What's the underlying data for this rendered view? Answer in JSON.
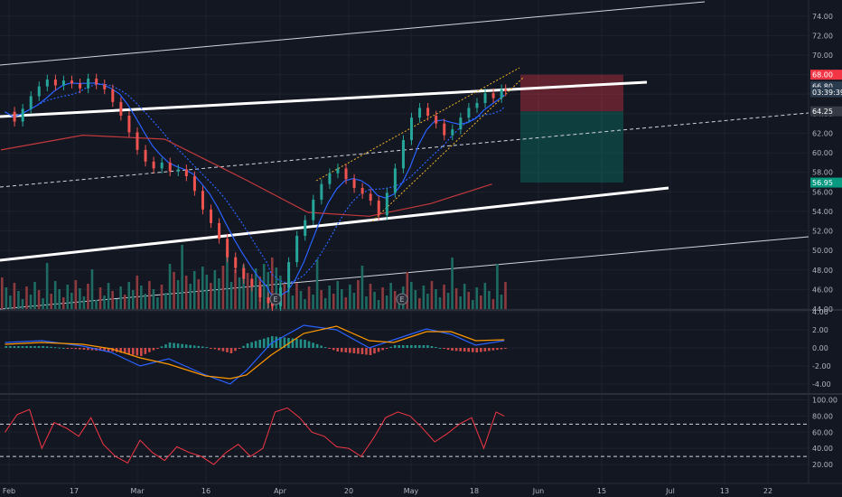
{
  "chart_data": [
    {
      "panel": "price",
      "type": "candlestick",
      "title": "",
      "y_axis": {
        "side": "right",
        "ticks": [
          "74.00",
          "72.00",
          "70.00",
          "68.00",
          "66.00",
          "64.00",
          "62.00",
          "60.00",
          "58.00",
          "56.00",
          "54.00",
          "52.00",
          "50.00",
          "48.00",
          "46.00",
          "44.00"
        ],
        "range": [
          44,
          75
        ]
      },
      "x_axis": {
        "ticks": [
          "Feb",
          "17",
          "Mar",
          "16",
          "Apr",
          "20",
          "May",
          "18",
          "Jun",
          "15",
          "Jul",
          "13",
          "22"
        ]
      },
      "price_tags": [
        {
          "label": "68.00",
          "value": 68.0,
          "color": "#f23645"
        },
        {
          "label": "66.80",
          "value": 66.8,
          "color": "#2a3b4d"
        },
        {
          "label": "03:39:39",
          "value": 66.2,
          "color": "#2a3b4d"
        },
        {
          "label": "64.25",
          "value": 64.25,
          "color": "#363a45"
        },
        {
          "label": "56.95",
          "value": 56.95,
          "color": "#089981"
        }
      ],
      "close_path": [
        [
          1,
          64.2
        ],
        [
          3,
          63.2
        ],
        [
          5,
          64.5
        ],
        [
          7,
          65.8
        ],
        [
          9,
          66.8
        ],
        [
          11,
          67.5
        ],
        [
          13,
          66.9
        ],
        [
          15,
          67.4
        ],
        [
          17,
          67.1
        ],
        [
          19,
          66.6
        ],
        [
          21,
          67.6
        ],
        [
          23,
          67.0
        ],
        [
          25,
          66.5
        ],
        [
          27,
          65.2
        ],
        [
          29,
          63.8
        ],
        [
          31,
          62.1
        ],
        [
          33,
          60.3
        ],
        [
          35,
          59.1
        ],
        [
          37,
          58.4
        ],
        [
          39,
          59.0
        ],
        [
          41,
          58.1
        ],
        [
          43,
          58.3
        ],
        [
          45,
          57.6
        ],
        [
          47,
          56.1
        ],
        [
          49,
          54.2
        ],
        [
          51,
          52.8
        ],
        [
          53,
          51.2
        ],
        [
          55,
          49.3
        ],
        [
          57,
          48.2
        ],
        [
          59,
          47.1
        ],
        [
          61,
          46.3
        ],
        [
          63,
          45.2
        ],
        [
          65,
          44.6
        ],
        [
          66,
          44.3
        ],
        [
          68,
          46.2
        ],
        [
          70,
          48.8
        ],
        [
          72,
          51.5
        ],
        [
          74,
          53.1
        ],
        [
          76,
          55.2
        ],
        [
          78,
          56.8
        ],
        [
          80,
          57.9
        ],
        [
          82,
          58.4
        ],
        [
          84,
          57.3
        ],
        [
          86,
          56.4
        ],
        [
          88,
          55.8
        ],
        [
          90,
          55.1
        ],
        [
          92,
          53.6
        ],
        [
          94,
          55.9
        ],
        [
          96,
          58.4
        ],
        [
          98,
          61.3
        ],
        [
          100,
          63.6
        ],
        [
          102,
          64.6
        ],
        [
          104,
          63.8
        ],
        [
          106,
          63.0
        ],
        [
          108,
          61.8
        ],
        [
          110,
          62.4
        ],
        [
          112,
          63.6
        ],
        [
          114,
          64.6
        ],
        [
          116,
          65.1
        ],
        [
          118,
          66.1
        ],
        [
          120,
          65.6
        ],
        [
          122,
          66.5
        ],
        [
          123,
          66.3
        ]
      ],
      "volume_hint": "histogram along the bottom of the price pane",
      "earnings_markers": [
        {
          "label": "E",
          "x_index": 64
        },
        {
          "label": "E",
          "x_index": 99
        }
      ],
      "trade_zones": [
        {
          "name": "stop",
          "top": 68.0,
          "bottom": 64.25,
          "color": "#f23645"
        },
        {
          "name": "target",
          "top": 64.25,
          "bottom": 56.95,
          "color": "#089981"
        }
      ]
    },
    {
      "panel": "macd",
      "type": "histogram+line",
      "title": "",
      "y_axis": {
        "ticks": [
          "4.00",
          "2.00",
          "0.00",
          "-2.00",
          "-4.00"
        ],
        "range": [
          -5,
          4
        ]
      },
      "series": [
        {
          "role": "macd",
          "color": "#2962ff",
          "points": [
            [
              1,
              0.6
            ],
            [
              10,
              0.8
            ],
            [
              20,
              0.2
            ],
            [
              27,
              -0.5
            ],
            [
              34,
              -2.0
            ],
            [
              41,
              -1.2
            ],
            [
              50,
              -3.0
            ],
            [
              56,
              -4.0
            ],
            [
              60,
              -2.5
            ],
            [
              66,
              0.5
            ],
            [
              74,
              2.5
            ],
            [
              82,
              2.0
            ],
            [
              90,
              0.0
            ],
            [
              96,
              0.9
            ],
            [
              104,
              2.1
            ],
            [
              110,
              1.5
            ],
            [
              116,
              0.3
            ],
            [
              123,
              0.8
            ]
          ]
        },
        {
          "role": "signal",
          "color": "#ff9800",
          "points": [
            [
              1,
              0.4
            ],
            [
              10,
              0.6
            ],
            [
              20,
              0.4
            ],
            [
              27,
              -0.1
            ],
            [
              34,
              -1.1
            ],
            [
              41,
              -1.8
            ],
            [
              50,
              -3.1
            ],
            [
              56,
              -3.4
            ],
            [
              60,
              -3.0
            ],
            [
              66,
              -0.8
            ],
            [
              74,
              1.6
            ],
            [
              82,
              2.4
            ],
            [
              90,
              0.8
            ],
            [
              96,
              0.6
            ],
            [
              104,
              1.8
            ],
            [
              110,
              1.8
            ],
            [
              116,
              0.8
            ],
            [
              123,
              0.9
            ]
          ]
        }
      ]
    },
    {
      "panel": "rsi",
      "type": "line",
      "title": "",
      "y_axis": {
        "ticks": [
          "100.00",
          "80.00",
          "60.00",
          "40.00",
          "20.00"
        ],
        "range": [
          0,
          105
        ]
      },
      "levels": [
        70,
        30
      ],
      "series": [
        {
          "role": "rsi",
          "color": "#f23645",
          "points": [
            [
              1,
              60
            ],
            [
              4,
              82
            ],
            [
              7,
              88
            ],
            [
              10,
              40
            ],
            [
              13,
              72
            ],
            [
              16,
              65
            ],
            [
              19,
              55
            ],
            [
              22,
              78
            ],
            [
              25,
              45
            ],
            [
              28,
              30
            ],
            [
              31,
              22
            ],
            [
              34,
              50
            ],
            [
              37,
              35
            ],
            [
              40,
              25
            ],
            [
              43,
              42
            ],
            [
              46,
              35
            ],
            [
              49,
              30
            ],
            [
              52,
              20
            ],
            [
              55,
              35
            ],
            [
              58,
              45
            ],
            [
              61,
              30
            ],
            [
              64,
              40
            ],
            [
              67,
              85
            ],
            [
              70,
              90
            ],
            [
              73,
              78
            ],
            [
              76,
              60
            ],
            [
              79,
              55
            ],
            [
              82,
              42
            ],
            [
              85,
              40
            ],
            [
              88,
              30
            ],
            [
              91,
              52
            ],
            [
              94,
              78
            ],
            [
              97,
              85
            ],
            [
              100,
              80
            ],
            [
              103,
              65
            ],
            [
              106,
              48
            ],
            [
              109,
              58
            ],
            [
              112,
              70
            ],
            [
              115,
              78
            ],
            [
              118,
              40
            ],
            [
              121,
              85
            ],
            [
              123,
              80
            ]
          ]
        }
      ]
    }
  ]
}
